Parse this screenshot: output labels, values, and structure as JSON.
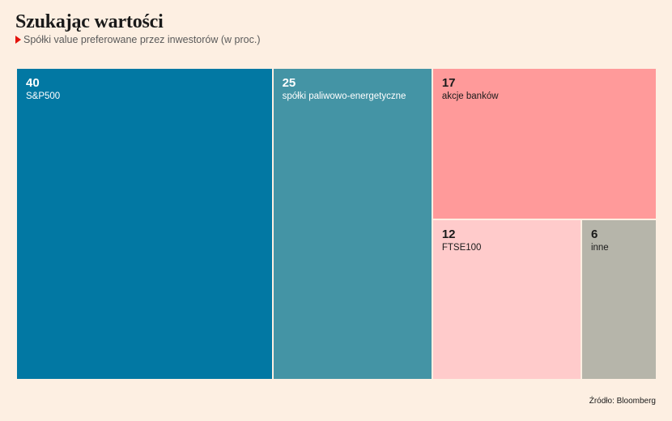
{
  "chart_data": {
    "type": "treemap",
    "title": "Szukając wartości",
    "subtitle": "Spółki value preferowane przez inwestorów (w proc.)",
    "source": "Źródło: Bloomberg",
    "items": [
      {
        "value": 40,
        "value_label": "40",
        "label": "S&P500",
        "color": "#0278a3",
        "text_color": "#ffffff"
      },
      {
        "value": 25,
        "value_label": "25",
        "label": "spółki paliwowo-energetyczne",
        "color": "#4494a5",
        "text_color": "#ffffff"
      },
      {
        "value": 17,
        "value_label": "17",
        "label": "akcje banków",
        "color": "#ff9a9a",
        "text_color": "#1a1a1a"
      },
      {
        "value": 12,
        "value_label": "12",
        "label": "FTSE100",
        "color": "#ffcbcb",
        "text_color": "#1a1a1a"
      },
      {
        "value": 6,
        "value_label": "6",
        "label": "inne",
        "color": "#b6b5aa",
        "text_color": "#1a1a1a"
      }
    ]
  }
}
